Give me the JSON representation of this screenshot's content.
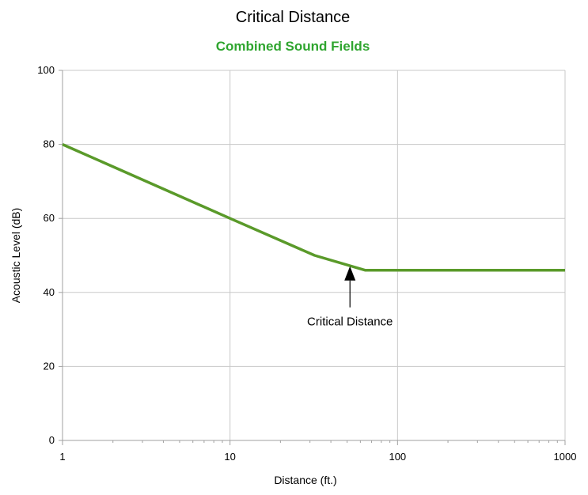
{
  "chart_data": {
    "type": "line",
    "title": "Critical Distance",
    "subtitle": "Combined Sound Fields",
    "xlabel": "Distance (ft.)",
    "ylabel": "Acoustic Level (dB)",
    "x_scale": "log",
    "xlim": [
      1,
      1000
    ],
    "ylim": [
      0,
      100
    ],
    "x_ticks": [
      "1",
      "10",
      "100",
      "1000"
    ],
    "y_ticks": [
      "0",
      "20",
      "40",
      "60",
      "80",
      "100"
    ],
    "grid": true,
    "legend": "none",
    "series": [
      {
        "points": [
          {
            "x": 1,
            "y": 80
          },
          {
            "x": 10,
            "y": 60
          },
          {
            "x": 32,
            "y": 50
          },
          {
            "x": 64,
            "y": 46
          },
          {
            "x": 1000,
            "y": 46
          }
        ],
        "color": "#5a9a2a"
      }
    ],
    "annotations": [
      {
        "text": "Critical Distance",
        "x": 52,
        "y": 46
      }
    ]
  },
  "colors": {
    "subtitle": "#2fa52f",
    "line": "#5a9a2a",
    "grid": "#c8c8c8",
    "axis": "#a0a0a0",
    "arrow": "#000000"
  }
}
